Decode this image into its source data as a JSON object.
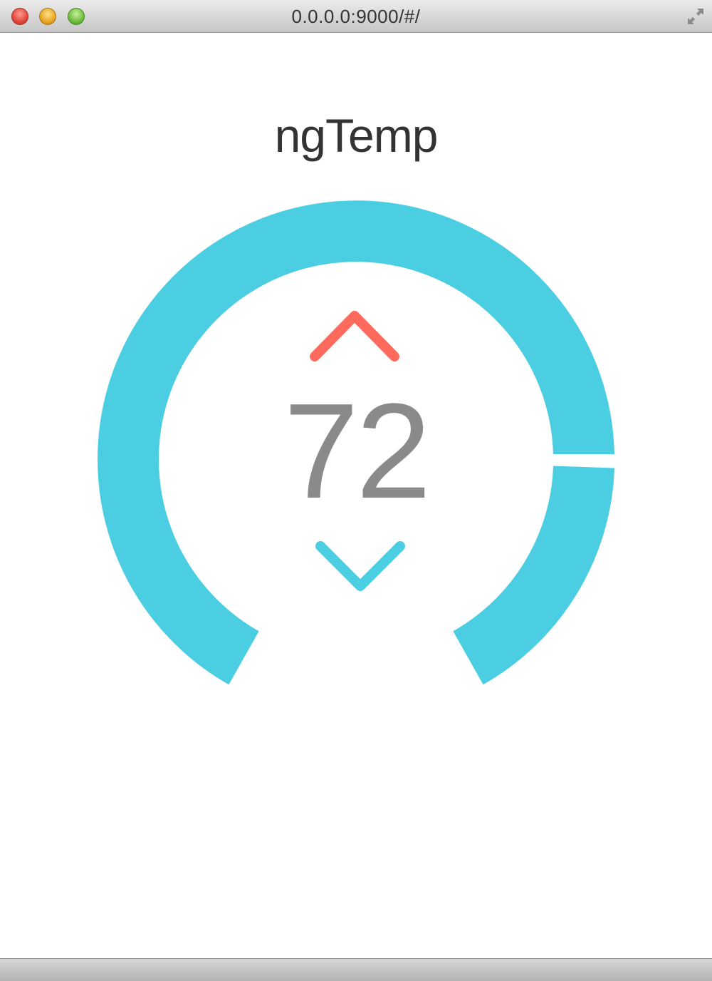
{
  "window": {
    "url": "0.0.0.0:9000/#/"
  },
  "app": {
    "title": "ngTemp",
    "temperature": "72",
    "dial": {
      "ring_color": "#4BCDE2",
      "up_color": "#FF6A5C",
      "down_color": "#4BCDE2",
      "text_color": "#8A8A8A"
    },
    "controls": {
      "increase_icon": "chevron-up-icon",
      "decrease_icon": "chevron-down-icon"
    }
  }
}
